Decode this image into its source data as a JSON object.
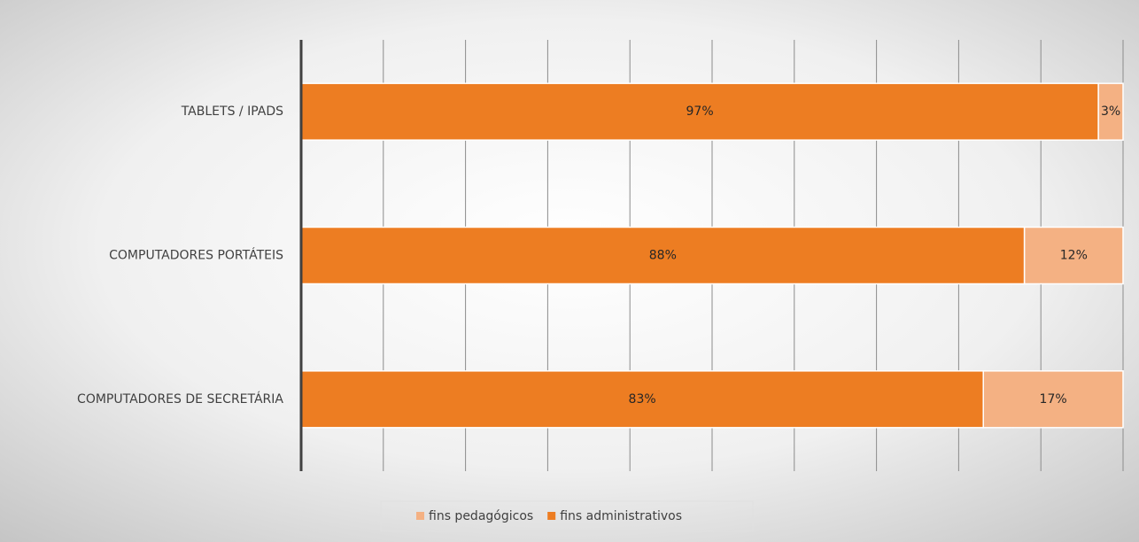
{
  "chart_data": {
    "type": "stacked_barh",
    "categories": [
      "TABLETS / IPADS",
      "COMPUTADORES PORTÁTEIS",
      "COMPUTADORES DE SECRETÁRIA"
    ],
    "series": [
      {
        "name": "fins administrativos",
        "color": "#ED7D22",
        "values": [
          97,
          88,
          83
        ],
        "value_labels": [
          "97%",
          "88%",
          "83%"
        ]
      },
      {
        "name": "fins pedagógicos",
        "color": "#F4B183",
        "values": [
          3,
          12,
          17
        ],
        "value_labels": [
          "3%",
          "12%",
          "17%"
        ]
      }
    ],
    "xlim": [
      0,
      100
    ],
    "xticks": [
      0,
      10,
      20,
      30,
      40,
      50,
      60,
      70,
      80,
      90,
      100
    ],
    "grid": true,
    "legend": "bottom"
  }
}
